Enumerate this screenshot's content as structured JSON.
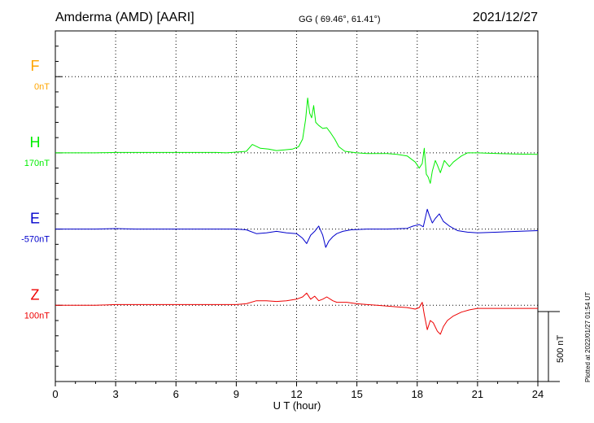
{
  "header": {
    "station": "Amderma (AMD)  [AARI]",
    "coords": "GG ( 69.46°,  61.41°)",
    "date": "2021/12/27"
  },
  "footer": {
    "plotted": "Plotted at 2022/01/27 01:54 UT"
  },
  "colors": {
    "F": "#ffa500",
    "H": "#00ee00",
    "E": "#0000cc",
    "Z": "#ee0000",
    "axis": "#000000",
    "grid": "#000000"
  },
  "chart_data": {
    "type": "line",
    "title": "Amderma (AMD)  [AARI]",
    "xlabel": "U T (hour)",
    "xlim": [
      0,
      24
    ],
    "x_ticks": [
      0,
      3,
      6,
      9,
      12,
      15,
      18,
      21,
      24
    ],
    "ylim_nT": [
      -2000,
      300
    ],
    "scale_bar": {
      "label": "500 nT",
      "value_nT": 500
    },
    "grid": true,
    "components": [
      {
        "name": "F",
        "baseline_label": "0nT",
        "baseline_offset_nT": 0,
        "points": []
      },
      {
        "name": "H",
        "baseline_label": "170nT",
        "baseline_offset_nT": -500,
        "points": [
          [
            0,
            0
          ],
          [
            1,
            0
          ],
          [
            2,
            0
          ],
          [
            3,
            3
          ],
          [
            4,
            3
          ],
          [
            5,
            3
          ],
          [
            6,
            3
          ],
          [
            7,
            3
          ],
          [
            8,
            3
          ],
          [
            8.5,
            0
          ],
          [
            9,
            5
          ],
          [
            9.5,
            10
          ],
          [
            9.8,
            55
          ],
          [
            10.2,
            30
          ],
          [
            10.6,
            25
          ],
          [
            11,
            15
          ],
          [
            11.4,
            20
          ],
          [
            11.8,
            25
          ],
          [
            12.1,
            40
          ],
          [
            12.3,
            90
          ],
          [
            12.45,
            220
          ],
          [
            12.55,
            360
          ],
          [
            12.65,
            260
          ],
          [
            12.75,
            230
          ],
          [
            12.85,
            310
          ],
          [
            12.95,
            200
          ],
          [
            13.1,
            180
          ],
          [
            13.3,
            160
          ],
          [
            13.5,
            165
          ],
          [
            13.7,
            130
          ],
          [
            13.9,
            90
          ],
          [
            14.1,
            40
          ],
          [
            14.4,
            10
          ],
          [
            15,
            0
          ],
          [
            15.5,
            -5
          ],
          [
            16,
            -5
          ],
          [
            16.5,
            -5
          ],
          [
            17,
            -10
          ],
          [
            17.5,
            -20
          ],
          [
            17.9,
            -60
          ],
          [
            18.1,
            -100
          ],
          [
            18.25,
            -70
          ],
          [
            18.35,
            30
          ],
          [
            18.45,
            -140
          ],
          [
            18.55,
            -160
          ],
          [
            18.65,
            -200
          ],
          [
            18.75,
            -120
          ],
          [
            18.9,
            -50
          ],
          [
            19.0,
            -80
          ],
          [
            19.15,
            -130
          ],
          [
            19.35,
            -50
          ],
          [
            19.6,
            -90
          ],
          [
            19.8,
            -60
          ],
          [
            20.0,
            -40
          ],
          [
            20.2,
            -20
          ],
          [
            20.5,
            0
          ],
          [
            21,
            0
          ],
          [
            22,
            -5
          ],
          [
            23,
            -8
          ],
          [
            24,
            -10
          ]
        ]
      },
      {
        "name": "E",
        "baseline_label": "-570nT",
        "baseline_offset_nT": -1000,
        "points": [
          [
            0,
            0
          ],
          [
            1,
            0
          ],
          [
            2,
            0
          ],
          [
            3,
            3
          ],
          [
            4,
            0
          ],
          [
            5,
            0
          ],
          [
            6,
            0
          ],
          [
            7,
            0
          ],
          [
            8,
            0
          ],
          [
            9,
            0
          ],
          [
            9.5,
            -5
          ],
          [
            10,
            -30
          ],
          [
            10.5,
            -25
          ],
          [
            11,
            -15
          ],
          [
            11.5,
            -25
          ],
          [
            12,
            -30
          ],
          [
            12.3,
            -60
          ],
          [
            12.5,
            -95
          ],
          [
            12.7,
            -40
          ],
          [
            12.9,
            -15
          ],
          [
            13.1,
            20
          ],
          [
            13.3,
            -40
          ],
          [
            13.45,
            -120
          ],
          [
            13.6,
            -80
          ],
          [
            13.8,
            -50
          ],
          [
            14.0,
            -30
          ],
          [
            14.3,
            -15
          ],
          [
            14.7,
            -5
          ],
          [
            15.5,
            0
          ],
          [
            16.5,
            0
          ],
          [
            17.5,
            5
          ],
          [
            17.8,
            20
          ],
          [
            18.1,
            30
          ],
          [
            18.3,
            15
          ],
          [
            18.5,
            130
          ],
          [
            18.6,
            90
          ],
          [
            18.75,
            40
          ],
          [
            18.9,
            70
          ],
          [
            19.1,
            100
          ],
          [
            19.3,
            50
          ],
          [
            19.6,
            20
          ],
          [
            20,
            -10
          ],
          [
            20.5,
            -20
          ],
          [
            21,
            -25
          ],
          [
            22,
            -20
          ],
          [
            23,
            -15
          ],
          [
            24,
            -10
          ]
        ]
      },
      {
        "name": "Z",
        "baseline_label": "100nT",
        "baseline_offset_nT": -1500,
        "points": [
          [
            0,
            0
          ],
          [
            1,
            0
          ],
          [
            2,
            0
          ],
          [
            3,
            5
          ],
          [
            4,
            5
          ],
          [
            5,
            5
          ],
          [
            6,
            5
          ],
          [
            7,
            5
          ],
          [
            8,
            5
          ],
          [
            9,
            5
          ],
          [
            9.5,
            10
          ],
          [
            10,
            30
          ],
          [
            10.5,
            30
          ],
          [
            11,
            25
          ],
          [
            11.5,
            30
          ],
          [
            12,
            40
          ],
          [
            12.3,
            55
          ],
          [
            12.5,
            80
          ],
          [
            12.7,
            40
          ],
          [
            12.9,
            60
          ],
          [
            13.1,
            30
          ],
          [
            13.3,
            40
          ],
          [
            13.5,
            55
          ],
          [
            13.8,
            30
          ],
          [
            14,
            20
          ],
          [
            14.5,
            20
          ],
          [
            15,
            10
          ],
          [
            15.5,
            5
          ],
          [
            16,
            0
          ],
          [
            16.5,
            -5
          ],
          [
            17,
            -10
          ],
          [
            17.5,
            -15
          ],
          [
            17.9,
            -25
          ],
          [
            18.1,
            -15
          ],
          [
            18.25,
            20
          ],
          [
            18.35,
            -60
          ],
          [
            18.5,
            -160
          ],
          [
            18.65,
            -100
          ],
          [
            18.8,
            -115
          ],
          [
            19.0,
            -170
          ],
          [
            19.15,
            -190
          ],
          [
            19.3,
            -140
          ],
          [
            19.5,
            -100
          ],
          [
            19.8,
            -70
          ],
          [
            20.2,
            -45
          ],
          [
            20.6,
            -30
          ],
          [
            21,
            -20
          ],
          [
            22,
            -20
          ],
          [
            23,
            -20
          ],
          [
            24,
            -20
          ]
        ]
      }
    ]
  }
}
